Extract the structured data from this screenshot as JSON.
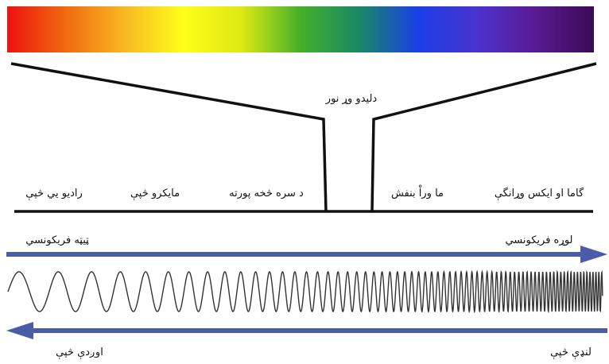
{
  "spectrum": {
    "gradient_colors": [
      "#ee1111",
      "#f06a10",
      "#f8b822",
      "#ffff1a",
      "#dde812",
      "#44b028",
      "#1a8866",
      "#1a3fe8",
      "#4a33d0",
      "#5a1a92",
      "#3a0a55"
    ]
  },
  "labels": {
    "visible_light": "دليدو وړ نور",
    "regions": [
      "رادیو يي څپې",
      "مایکرو څپې",
      "د سره څخه پورته",
      "ما وراْ بنفش",
      "گاما او ايکس وړانگې"
    ]
  },
  "arrows": {
    "frequency_low": "ټيټه فریکونسي",
    "frequency_high": "لوړه فریکونسي",
    "wave_long": "اوږدې څپې",
    "wave_short": "لنډې څپې",
    "color": "#4a5ca8"
  },
  "wave": {
    "color": "#333333"
  }
}
